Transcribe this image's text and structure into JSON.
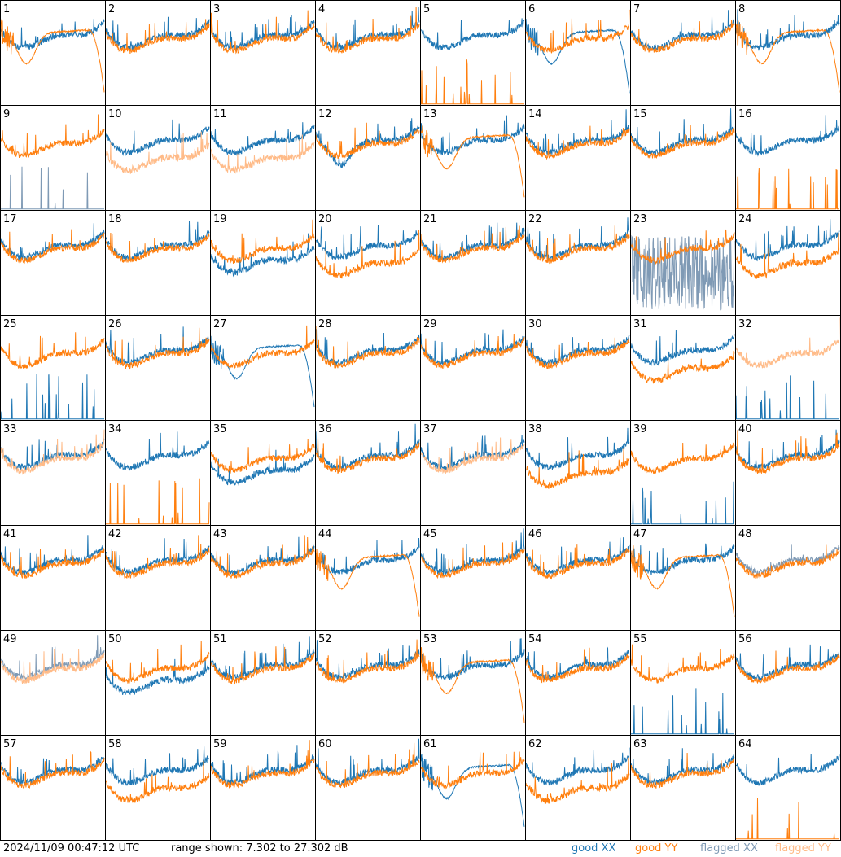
{
  "footer": {
    "timestamp": "2024/11/09 00:47:12 UTC",
    "range_text": "range shown: 7.302 to 27.302 dB"
  },
  "legend": {
    "good_xx": "good XX",
    "good_yy": "good YY",
    "flagged_xx": "flagged XX",
    "flagged_yy": "flagged YY"
  },
  "colors": {
    "good_xx": "#1f77b4",
    "good_yy": "#ff7f0e",
    "flagged_xx": "#7f9ab5",
    "flagged_yy": "#ffbb88"
  },
  "chart_data": {
    "type": "line",
    "grid": "8x8 small multiples of per-antenna spectra",
    "ylim": [
      7.302,
      27.302
    ],
    "yunit": "dB",
    "tiles": [
      {
        "label": "1",
        "xx": "good",
        "yy": "good",
        "shape": "yy-rolloff"
      },
      {
        "label": "2",
        "xx": "good",
        "yy": "good",
        "shape": "normal"
      },
      {
        "label": "3",
        "xx": "good",
        "yy": "good",
        "shape": "normal"
      },
      {
        "label": "4",
        "xx": "good",
        "yy": "good",
        "shape": "normal"
      },
      {
        "label": "5",
        "xx": "good",
        "yy": "good",
        "shape": "yy-spikes"
      },
      {
        "label": "6",
        "xx": "good",
        "yy": "good",
        "shape": "xx-rolloff"
      },
      {
        "label": "7",
        "xx": "good",
        "yy": "good",
        "shape": "normal"
      },
      {
        "label": "8",
        "xx": "good",
        "yy": "good",
        "shape": "yy-rolloff"
      },
      {
        "label": "9",
        "xx": "flagged",
        "yy": "good",
        "shape": "xx-spikes"
      },
      {
        "label": "10",
        "xx": "good",
        "yy": "flagged",
        "shape": "yy-low"
      },
      {
        "label": "11",
        "xx": "good",
        "yy": "flagged",
        "shape": "yy-low"
      },
      {
        "label": "12",
        "xx": "good",
        "yy": "good",
        "shape": "xx-dip"
      },
      {
        "label": "13",
        "xx": "good",
        "yy": "good",
        "shape": "yy-rolloff"
      },
      {
        "label": "14",
        "xx": "good",
        "yy": "good",
        "shape": "normal"
      },
      {
        "label": "15",
        "xx": "good",
        "yy": "good",
        "shape": "normal"
      },
      {
        "label": "16",
        "xx": "good",
        "yy": "good",
        "shape": "yy-spikes"
      },
      {
        "label": "17",
        "xx": "good",
        "yy": "good",
        "shape": "normal"
      },
      {
        "label": "18",
        "xx": "good",
        "yy": "good",
        "shape": "normal"
      },
      {
        "label": "19",
        "xx": "good",
        "yy": "good",
        "shape": "xx-low"
      },
      {
        "label": "20",
        "xx": "good",
        "yy": "good",
        "shape": "yy-low"
      },
      {
        "label": "21",
        "xx": "good",
        "yy": "good",
        "shape": "normal"
      },
      {
        "label": "22",
        "xx": "good",
        "yy": "good",
        "shape": "normal"
      },
      {
        "label": "23",
        "xx": "flagged",
        "yy": "good",
        "shape": "xx-noisy"
      },
      {
        "label": "24",
        "xx": "good",
        "yy": "good",
        "shape": "yy-low"
      },
      {
        "label": "25",
        "xx": "good",
        "yy": "good",
        "shape": "xx-spikes"
      },
      {
        "label": "26",
        "xx": "good",
        "yy": "good",
        "shape": "normal"
      },
      {
        "label": "27",
        "xx": "good",
        "yy": "good",
        "shape": "xx-rolloff"
      },
      {
        "label": "28",
        "xx": "good",
        "yy": "good",
        "shape": "normal"
      },
      {
        "label": "29",
        "xx": "good",
        "yy": "good",
        "shape": "normal"
      },
      {
        "label": "30",
        "xx": "good",
        "yy": "good",
        "shape": "normal"
      },
      {
        "label": "31",
        "xx": "good",
        "yy": "good",
        "shape": "yy-low"
      },
      {
        "label": "32",
        "xx": "good",
        "yy": "flagged",
        "shape": "xx-spikes"
      },
      {
        "label": "33",
        "xx": "good",
        "yy": "flagged",
        "shape": "normal"
      },
      {
        "label": "34",
        "xx": "good",
        "yy": "good",
        "shape": "yy-spikes"
      },
      {
        "label": "35",
        "xx": "good",
        "yy": "good",
        "shape": "xx-low"
      },
      {
        "label": "36",
        "xx": "good",
        "yy": "good",
        "shape": "normal"
      },
      {
        "label": "37",
        "xx": "good",
        "yy": "flagged",
        "shape": "normal"
      },
      {
        "label": "38",
        "xx": "good",
        "yy": "good",
        "shape": "yy-low"
      },
      {
        "label": "39",
        "xx": "good",
        "yy": "good",
        "shape": "xx-spikes"
      },
      {
        "label": "40",
        "xx": "good",
        "yy": "good",
        "shape": "normal"
      },
      {
        "label": "41",
        "xx": "good",
        "yy": "good",
        "shape": "normal"
      },
      {
        "label": "42",
        "xx": "good",
        "yy": "good",
        "shape": "normal"
      },
      {
        "label": "43",
        "xx": "good",
        "yy": "good",
        "shape": "normal"
      },
      {
        "label": "44",
        "xx": "good",
        "yy": "good",
        "shape": "yy-rolloff"
      },
      {
        "label": "45",
        "xx": "good",
        "yy": "good",
        "shape": "normal"
      },
      {
        "label": "46",
        "xx": "good",
        "yy": "good",
        "shape": "normal"
      },
      {
        "label": "47",
        "xx": "good",
        "yy": "good",
        "shape": "yy-rolloff"
      },
      {
        "label": "48",
        "xx": "flagged",
        "yy": "good",
        "shape": "normal"
      },
      {
        "label": "49",
        "xx": "flagged",
        "yy": "flagged",
        "shape": "normal"
      },
      {
        "label": "50",
        "xx": "good",
        "yy": "good",
        "shape": "xx-low"
      },
      {
        "label": "51",
        "xx": "good",
        "yy": "good",
        "shape": "normal"
      },
      {
        "label": "52",
        "xx": "good",
        "yy": "good",
        "shape": "normal"
      },
      {
        "label": "53",
        "xx": "good",
        "yy": "good",
        "shape": "yy-rolloff"
      },
      {
        "label": "54",
        "xx": "good",
        "yy": "good",
        "shape": "normal"
      },
      {
        "label": "55",
        "xx": "good",
        "yy": "good",
        "shape": "xx-spikes"
      },
      {
        "label": "56",
        "xx": "good",
        "yy": "good",
        "shape": "normal"
      },
      {
        "label": "57",
        "xx": "good",
        "yy": "good",
        "shape": "normal"
      },
      {
        "label": "58",
        "xx": "good",
        "yy": "good",
        "shape": "yy-low"
      },
      {
        "label": "59",
        "xx": "good",
        "yy": "good",
        "shape": "normal"
      },
      {
        "label": "60",
        "xx": "good",
        "yy": "good",
        "shape": "normal"
      },
      {
        "label": "61",
        "xx": "good",
        "yy": "good",
        "shape": "xx-rolloff"
      },
      {
        "label": "62",
        "xx": "good",
        "yy": "good",
        "shape": "yy-low"
      },
      {
        "label": "63",
        "xx": "good",
        "yy": "good",
        "shape": "normal"
      },
      {
        "label": "64",
        "xx": "good",
        "yy": "good",
        "shape": "yy-spikes"
      }
    ]
  }
}
